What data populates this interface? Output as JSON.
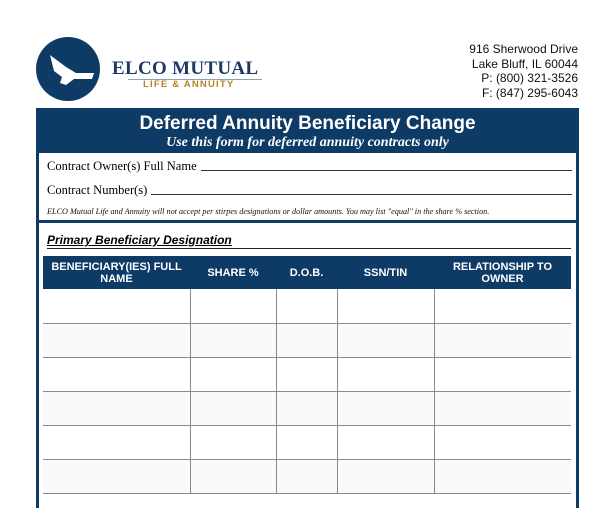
{
  "company": {
    "name": "ELCO MUTUAL",
    "tagline": "LIFE & ANNUITY"
  },
  "address": [
    "916 Sherwood Drive",
    "Lake Bluff, IL 60044",
    "P: (800) 321-3526",
    "F: (847) 295-6043"
  ],
  "form": {
    "title": "Deferred Annuity Beneficiary Change",
    "subtitle": "Use this form for deferred annuity contracts only"
  },
  "fields": {
    "owner_label": "Contract Owner(s) Full Name",
    "owner_value": "",
    "contract_label": "Contract Number(s)",
    "contract_value": ""
  },
  "note": "ELCO Mutual Life and Annuity will not accept per stirpes designations or dollar amounts. You may list \"equal\" in the share % section.",
  "section": {
    "title": "Primary Beneficiary Designation"
  },
  "table": {
    "headers": [
      "BENEFICIARY(IES) FULL NAME",
      "SHARE %",
      "D.O.B.",
      "SSN/TIN",
      "RELATIONSHIP TO OWNER"
    ],
    "rows": [
      [
        "",
        "",
        "",
        "",
        ""
      ],
      [
        "",
        "",
        "",
        "",
        ""
      ],
      [
        "",
        "",
        "",
        "",
        ""
      ],
      [
        "",
        "",
        "",
        "",
        ""
      ],
      [
        "",
        "",
        "",
        "",
        ""
      ],
      [
        "",
        "",
        "",
        "",
        ""
      ]
    ]
  },
  "colors": {
    "brand": "#0e3a66",
    "gold": "#b8862a"
  }
}
